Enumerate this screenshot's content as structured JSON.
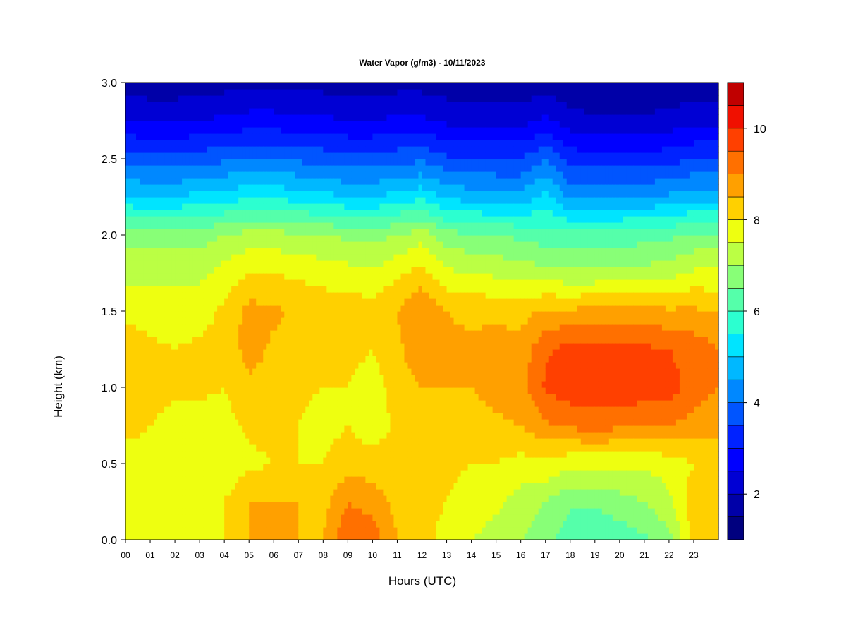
{
  "chart_data": {
    "type": "heatmap",
    "title": "Water Vapor (g/m3) - 10/11/2023",
    "xlabel": "Hours (UTC)",
    "ylabel": "Height (km)",
    "xlim": [
      0,
      24
    ],
    "ylim": [
      0,
      3.0
    ],
    "x_ticks": [
      "00",
      "01",
      "02",
      "03",
      "04",
      "05",
      "06",
      "07",
      "08",
      "09",
      "10",
      "11",
      "12",
      "13",
      "14",
      "15",
      "16",
      "17",
      "18",
      "19",
      "20",
      "21",
      "22",
      "23"
    ],
    "y_ticks": [
      "0.0",
      "0.5",
      "1.0",
      "1.5",
      "2.0",
      "2.5",
      "3.0"
    ],
    "colorbar": {
      "range": [
        1,
        11
      ],
      "ticks": [
        "2",
        "4",
        "6",
        "8",
        "10"
      ],
      "levels": [
        1.0,
        1.5,
        2.0,
        2.5,
        3.0,
        3.5,
        4.0,
        4.5,
        5.0,
        5.5,
        6.0,
        6.5,
        7.0,
        7.5,
        8.0,
        8.5,
        9.0,
        9.5,
        10.0,
        10.5,
        11.0
      ],
      "colors": [
        "#00007f",
        "#0000a8",
        "#0000d4",
        "#0000ff",
        "#0022ff",
        "#0055ff",
        "#0088ff",
        "#00b8ff",
        "#00e4ff",
        "#2cffd0",
        "#55ffaa",
        "#88ff77",
        "#bbff44",
        "#eeff10",
        "#ffd000",
        "#ffa000",
        "#ff7000",
        "#ff4000",
        "#f01000",
        "#c00000",
        "#800000"
      ]
    },
    "heights_km": [
      0.0,
      0.25,
      0.5,
      0.75,
      1.0,
      1.25,
      1.5,
      1.75,
      2.0,
      2.25,
      2.5,
      2.75,
      3.0
    ],
    "hours_utc": [
      0,
      1,
      2,
      3,
      4,
      5,
      6,
      7,
      8,
      9,
      10,
      11,
      12,
      13,
      14,
      15,
      16,
      17,
      18,
      19,
      20,
      21,
      22,
      23,
      24
    ],
    "values": [
      [
        7.6,
        7.5,
        7.6,
        7.6,
        8.0,
        8.5,
        8.5,
        8.5,
        8.5,
        9.5,
        9.3,
        8.5,
        8.2,
        7.8,
        7.5,
        7.3,
        7.0,
        6.7,
        6.2,
        6.0,
        6.2,
        6.4,
        6.8,
        8.2,
        8.5
      ],
      [
        7.9,
        7.9,
        7.9,
        7.9,
        8.0,
        8.5,
        8.5,
        8.5,
        8.3,
        9.0,
        8.8,
        8.3,
        8.2,
        8.0,
        7.8,
        7.6,
        7.3,
        7.0,
        6.6,
        6.6,
        6.8,
        7.0,
        7.4,
        8.3,
        8.5
      ],
      [
        7.6,
        7.6,
        7.6,
        7.7,
        7.6,
        7.9,
        8.0,
        8.0,
        8.0,
        8.3,
        8.2,
        8.3,
        8.3,
        8.1,
        8.0,
        8.0,
        7.8,
        7.9,
        7.6,
        7.6,
        7.6,
        7.6,
        7.7,
        8.0,
        8.2
      ],
      [
        8.3,
        8.0,
        7.8,
        7.8,
        7.8,
        8.1,
        8.1,
        8.0,
        7.8,
        8.0,
        7.7,
        8.1,
        8.3,
        8.3,
        8.3,
        8.4,
        8.5,
        8.9,
        9.1,
        9.2,
        9.1,
        9.0,
        9.0,
        8.8,
        8.6
      ],
      [
        8.5,
        8.2,
        8.1,
        8.1,
        8.0,
        8.4,
        8.3,
        8.1,
        8.0,
        8.0,
        7.7,
        8.3,
        8.5,
        8.5,
        8.5,
        8.7,
        8.8,
        9.6,
        9.8,
        9.9,
        9.9,
        9.8,
        9.7,
        9.3,
        9.0
      ],
      [
        8.3,
        8.1,
        8.0,
        8.1,
        8.2,
        8.7,
        8.4,
        8.2,
        8.2,
        8.2,
        8.0,
        8.4,
        8.8,
        8.6,
        8.6,
        8.7,
        8.7,
        9.4,
        9.7,
        9.7,
        9.6,
        9.6,
        9.5,
        9.3,
        9.0
      ],
      [
        7.9,
        7.8,
        7.8,
        7.8,
        8.1,
        8.7,
        8.6,
        8.4,
        8.3,
        8.3,
        8.2,
        8.5,
        9.0,
        8.5,
        8.4,
        8.4,
        8.3,
        8.6,
        8.6,
        8.7,
        8.7,
        8.7,
        8.6,
        8.6,
        8.5
      ],
      [
        7.3,
        7.3,
        7.3,
        7.4,
        7.7,
        8.0,
        8.0,
        7.9,
        7.8,
        7.7,
        7.6,
        7.9,
        8.2,
        7.6,
        7.5,
        7.4,
        7.3,
        7.2,
        7.1,
        7.1,
        7.2,
        7.2,
        7.3,
        7.6,
        7.6
      ],
      [
        6.8,
        6.8,
        6.8,
        6.8,
        7.0,
        7.2,
        7.2,
        7.1,
        7.0,
        6.9,
        6.8,
        7.0,
        7.3,
        6.7,
        6.6,
        6.5,
        6.4,
        6.2,
        6.2,
        6.2,
        6.2,
        6.3,
        6.4,
        6.6,
        6.6
      ],
      [
        5.1,
        5.0,
        5.0,
        5.2,
        5.3,
        5.4,
        5.4,
        5.3,
        5.2,
        5.0,
        5.0,
        5.2,
        5.4,
        4.9,
        4.8,
        4.7,
        4.7,
        5.2,
        4.4,
        4.4,
        4.5,
        4.5,
        4.6,
        4.8,
        4.8
      ],
      [
        3.8,
        3.7,
        3.7,
        3.8,
        3.9,
        4.0,
        4.0,
        3.9,
        3.8,
        3.7,
        3.7,
        3.8,
        3.9,
        3.6,
        3.5,
        3.5,
        3.5,
        4.0,
        3.3,
        3.2,
        3.2,
        3.2,
        3.3,
        3.5,
        3.5
      ],
      [
        2.5,
        2.4,
        2.4,
        2.5,
        2.6,
        2.7,
        2.7,
        2.6,
        2.6,
        2.5,
        2.5,
        2.6,
        2.6,
        2.4,
        2.4,
        2.3,
        2.3,
        2.6,
        2.2,
        2.1,
        2.1,
        2.1,
        2.2,
        2.3,
        2.3
      ],
      [
        1.8,
        1.7,
        1.7,
        1.8,
        1.8,
        1.9,
        1.9,
        1.8,
        1.8,
        1.8,
        1.8,
        1.8,
        1.8,
        1.7,
        1.7,
        1.6,
        1.6,
        1.8,
        1.6,
        1.5,
        1.5,
        1.5,
        1.6,
        1.7,
        1.7
      ]
    ]
  }
}
